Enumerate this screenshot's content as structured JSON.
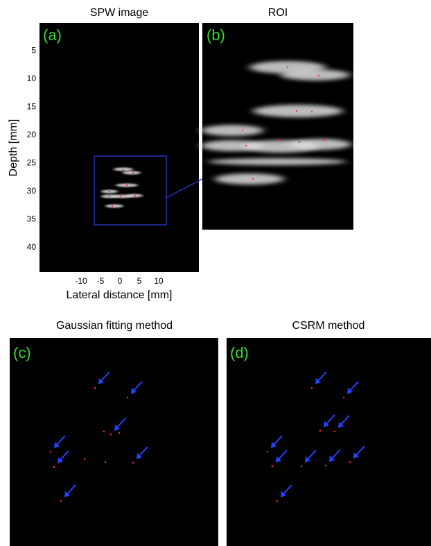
{
  "panels": [
    {
      "label": "(a)",
      "title": "SPW image",
      "y_label": "Depth [mm]",
      "x_label": "Lateral distance [mm]",
      "xticks": [
        -10,
        -5,
        0,
        5,
        10
      ],
      "yticks": [
        5,
        10,
        15,
        20,
        25,
        30,
        35,
        40
      ]
    },
    {
      "label": "(b)",
      "title": "ROI"
    },
    {
      "label": "(c)",
      "title": "Gaussian fitting method"
    },
    {
      "label": "(d)",
      "title": "CSRM method"
    }
  ]
}
